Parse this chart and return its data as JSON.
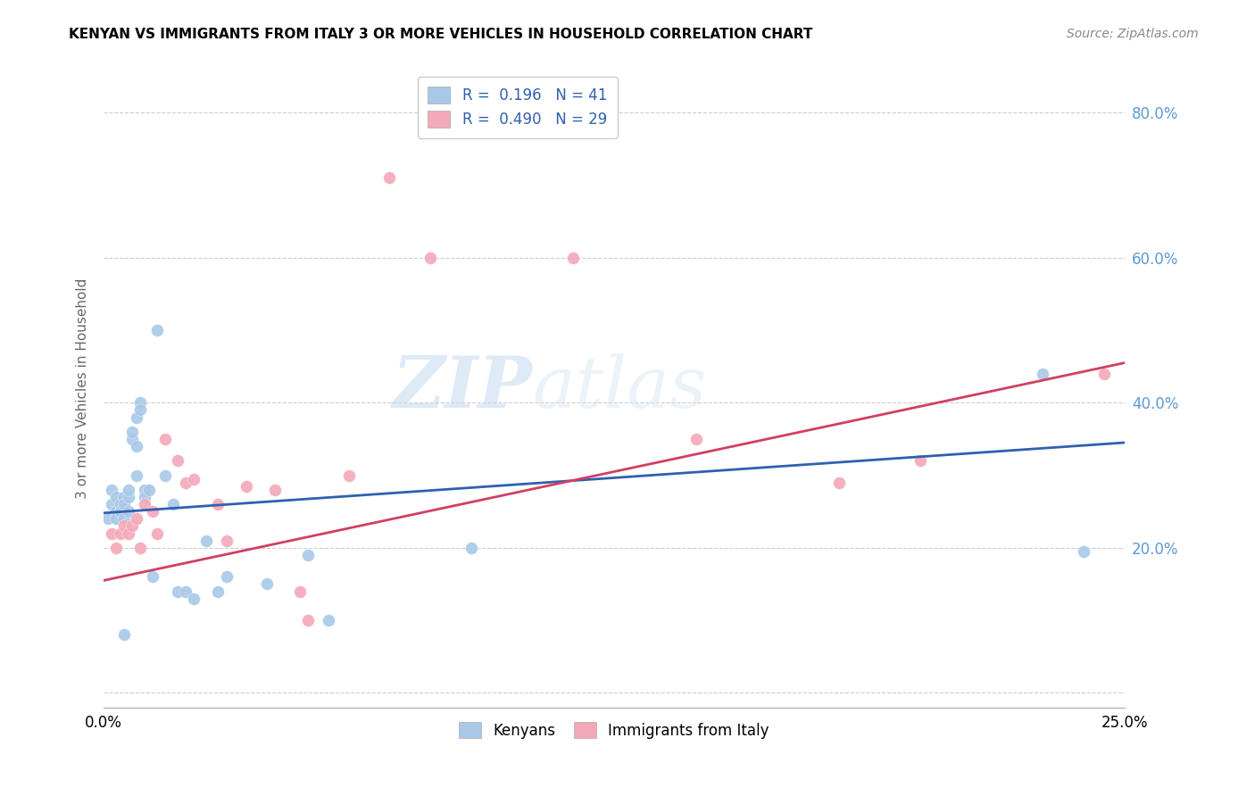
{
  "title": "KENYAN VS IMMIGRANTS FROM ITALY 3 OR MORE VEHICLES IN HOUSEHOLD CORRELATION CHART",
  "source": "Source: ZipAtlas.com",
  "ylabel": "3 or more Vehicles in Household",
  "xlim": [
    0.0,
    0.25
  ],
  "ylim": [
    -0.02,
    0.86
  ],
  "y_ticks": [
    0.0,
    0.2,
    0.4,
    0.6,
    0.8
  ],
  "y_tick_labels": [
    "",
    "20.0%",
    "40.0%",
    "60.0%",
    "80.0%"
  ],
  "x_ticks": [
    0.0,
    0.05,
    0.1,
    0.15,
    0.2,
    0.25
  ],
  "x_tick_labels": [
    "0.0%",
    "",
    "",
    "",
    "",
    "25.0%"
  ],
  "blue_color": "#A8C8E8",
  "pink_color": "#F4A8B8",
  "blue_line_color": "#3060B0",
  "pink_line_color": "#D04060",
  "watermark_text": "ZIPatlas",
  "kenyans_x": [
    0.001,
    0.002,
    0.002,
    0.003,
    0.003,
    0.003,
    0.004,
    0.004,
    0.005,
    0.005,
    0.005,
    0.006,
    0.006,
    0.006,
    0.007,
    0.007,
    0.008,
    0.008,
    0.008,
    0.009,
    0.009,
    0.01,
    0.01,
    0.011,
    0.012,
    0.013,
    0.015,
    0.017,
    0.018,
    0.02,
    0.022,
    0.025,
    0.028,
    0.03,
    0.04,
    0.05,
    0.055,
    0.09,
    0.23,
    0.24,
    0.005
  ],
  "kenyans_y": [
    0.24,
    0.26,
    0.28,
    0.25,
    0.27,
    0.24,
    0.26,
    0.25,
    0.27,
    0.26,
    0.24,
    0.27,
    0.25,
    0.28,
    0.35,
    0.36,
    0.34,
    0.3,
    0.38,
    0.4,
    0.39,
    0.28,
    0.27,
    0.28,
    0.16,
    0.5,
    0.3,
    0.26,
    0.14,
    0.14,
    0.13,
    0.21,
    0.14,
    0.16,
    0.15,
    0.19,
    0.1,
    0.2,
    0.44,
    0.195,
    0.08
  ],
  "italy_x": [
    0.002,
    0.003,
    0.004,
    0.005,
    0.006,
    0.007,
    0.008,
    0.009,
    0.01,
    0.012,
    0.013,
    0.015,
    0.018,
    0.02,
    0.022,
    0.028,
    0.03,
    0.035,
    0.042,
    0.048,
    0.05,
    0.06,
    0.07,
    0.08,
    0.115,
    0.145,
    0.18,
    0.2,
    0.245
  ],
  "italy_y": [
    0.22,
    0.2,
    0.22,
    0.23,
    0.22,
    0.23,
    0.24,
    0.2,
    0.26,
    0.25,
    0.22,
    0.35,
    0.32,
    0.29,
    0.295,
    0.26,
    0.21,
    0.285,
    0.28,
    0.14,
    0.1,
    0.3,
    0.71,
    0.6,
    0.6,
    0.35,
    0.29,
    0.32,
    0.44
  ],
  "blue_line_x0": 0.0,
  "blue_line_y0": 0.248,
  "blue_line_x1": 0.25,
  "blue_line_y1": 0.345,
  "pink_line_x0": 0.0,
  "pink_line_y0": 0.155,
  "pink_line_x1": 0.25,
  "pink_line_y1": 0.455
}
